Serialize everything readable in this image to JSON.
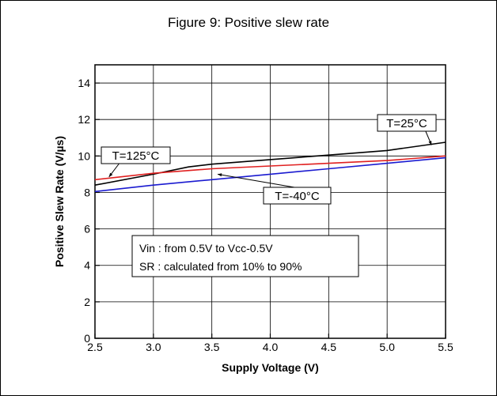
{
  "chart_data": {
    "type": "line",
    "title": "Figure 9: Positive slew rate",
    "xlabel": "Supply Voltage (V)",
    "ylabel": "Positive Slew Rate (V/µs)",
    "xlim": [
      2.5,
      5.5
    ],
    "ylim": [
      0,
      15
    ],
    "x_ticks": [
      "2.5",
      "3.0",
      "3.5",
      "4.0",
      "4.5",
      "5.0",
      "5.5"
    ],
    "y_ticks": [
      "0",
      "2",
      "4",
      "6",
      "8",
      "10",
      "12",
      "14"
    ],
    "grid": true,
    "series": [
      {
        "name": "T=25°C",
        "color": "#000000",
        "x": [
          2.5,
          3.0,
          3.3,
          3.5,
          4.0,
          4.5,
          5.0,
          5.5
        ],
        "y": [
          8.4,
          9.0,
          9.4,
          9.55,
          9.8,
          10.05,
          10.3,
          10.75
        ]
      },
      {
        "name": "T=125°C",
        "color": "#e02020",
        "x": [
          2.5,
          3.0,
          3.5,
          4.0,
          4.5,
          5.0,
          5.5
        ],
        "y": [
          8.7,
          9.05,
          9.3,
          9.45,
          9.6,
          9.75,
          10.0
        ]
      },
      {
        "name": "T=-40°C",
        "color": "#1a1ad0",
        "x": [
          2.5,
          3.0,
          3.5,
          4.0,
          4.5,
          5.0,
          5.5
        ],
        "y": [
          8.05,
          8.4,
          8.7,
          9.0,
          9.3,
          9.6,
          9.9
        ]
      }
    ],
    "annotations": [
      "Vin : from 0.5V to Vcc-0.5V",
      "SR : calculated from 10% to 90%"
    ]
  }
}
